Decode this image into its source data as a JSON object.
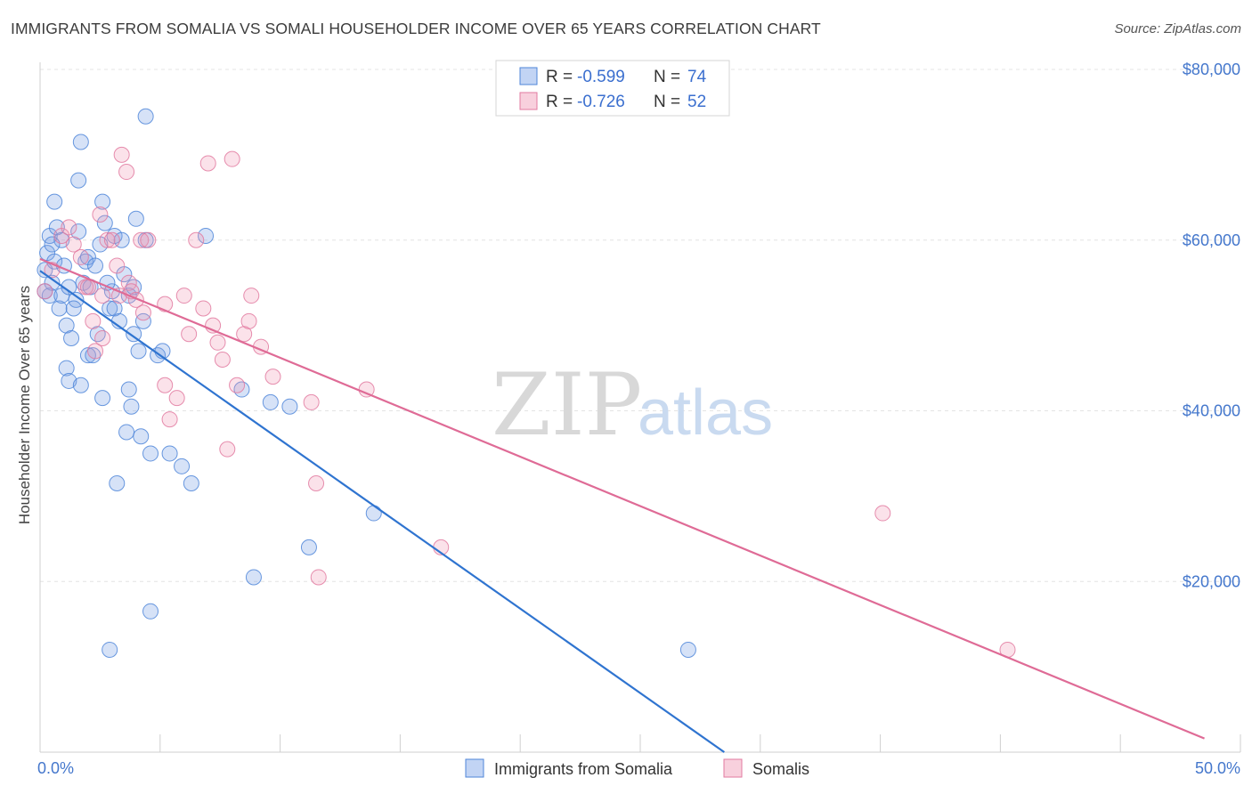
{
  "title": "IMMIGRANTS FROM SOMALIA VS SOMALI HOUSEHOLDER INCOME OVER 65 YEARS CORRELATION CHART",
  "source": "Source: ZipAtlas.com",
  "watermark": {
    "zip": "ZIP",
    "atlas": "atlas"
  },
  "colors": {
    "blue": "#4f86d9",
    "blue_fill": "rgba(120,160,230,0.30)",
    "blue_line": "#2f74d0",
    "pink": "#e27aa0",
    "pink_fill": "rgba(240,150,180,0.28)",
    "pink_line": "#df6b96"
  },
  "legend": {
    "r_label": "R =",
    "n_label": "N =",
    "entries": [
      {
        "r": "-0.599",
        "n": "74"
      },
      {
        "r": "-0.726",
        "n": "52"
      }
    ]
  },
  "chart_data": {
    "type": "scatter",
    "title": "IMMIGRANTS FROM SOMALIA VS SOMALI HOUSEHOLDER INCOME OVER 65 YEARS CORRELATION CHART",
    "xlabel": "",
    "ylabel": "Householder Income Over 65 years",
    "xlim": [
      0,
      50
    ],
    "ylim": [
      0,
      80000
    ],
    "x_tick_labels": {
      "left": "0.0%",
      "right": "50.0%"
    },
    "y_ticks": [
      {
        "value": 20000,
        "label": "$20,000"
      },
      {
        "value": 40000,
        "label": "$40,000"
      },
      {
        "value": 60000,
        "label": "$60,000"
      },
      {
        "value": 80000,
        "label": "$80,000"
      }
    ],
    "grid": true,
    "legend_position": "bottom",
    "series": [
      {
        "name": "Immigrants from Somalia",
        "color": "#4f86d9",
        "trend": {
          "x0": 0,
          "y0": 56400,
          "x1": 28.5,
          "y1": 0
        },
        "points": [
          [
            0.2,
            56500
          ],
          [
            0.3,
            58500
          ],
          [
            0.4,
            60500
          ],
          [
            0.4,
            53500
          ],
          [
            0.5,
            55000
          ],
          [
            0.6,
            57500
          ],
          [
            0.6,
            64500
          ],
          [
            0.7,
            61500
          ],
          [
            0.8,
            52000
          ],
          [
            0.9,
            60000
          ],
          [
            0.9,
            53500
          ],
          [
            1.0,
            57000
          ],
          [
            1.1,
            45000
          ],
          [
            1.1,
            50000
          ],
          [
            1.2,
            43500
          ],
          [
            1.2,
            54500
          ],
          [
            1.3,
            48500
          ],
          [
            1.5,
            53000
          ],
          [
            1.6,
            61000
          ],
          [
            1.6,
            67000
          ],
          [
            1.7,
            43000
          ],
          [
            1.7,
            71500
          ],
          [
            1.8,
            55000
          ],
          [
            1.9,
            57500
          ],
          [
            2.0,
            46500
          ],
          [
            2.1,
            54500
          ],
          [
            2.0,
            58000
          ],
          [
            2.2,
            46500
          ],
          [
            2.3,
            57000
          ],
          [
            2.4,
            49000
          ],
          [
            2.5,
            59500
          ],
          [
            2.6,
            64500
          ],
          [
            2.6,
            41500
          ],
          [
            2.7,
            62000
          ],
          [
            2.9,
            52000
          ],
          [
            2.9,
            12000
          ],
          [
            3.0,
            54000
          ],
          [
            3.1,
            60500
          ],
          [
            3.1,
            52000
          ],
          [
            3.2,
            31500
          ],
          [
            3.3,
            50500
          ],
          [
            3.4,
            60000
          ],
          [
            3.5,
            56000
          ],
          [
            3.6,
            37500
          ],
          [
            3.7,
            42500
          ],
          [
            3.7,
            53500
          ],
          [
            3.8,
            40500
          ],
          [
            3.9,
            49000
          ],
          [
            3.9,
            54500
          ],
          [
            4.0,
            62500
          ],
          [
            4.1,
            47000
          ],
          [
            4.2,
            37000
          ],
          [
            4.3,
            50500
          ],
          [
            4.4,
            60000
          ],
          [
            4.4,
            74500
          ],
          [
            4.6,
            16500
          ],
          [
            4.6,
            35000
          ],
          [
            4.9,
            46500
          ],
          [
            5.1,
            47000
          ],
          [
            5.4,
            35000
          ],
          [
            5.9,
            33500
          ],
          [
            6.3,
            31500
          ],
          [
            6.9,
            60500
          ],
          [
            8.4,
            42500
          ],
          [
            8.9,
            20500
          ],
          [
            9.6,
            41000
          ],
          [
            10.4,
            40500
          ],
          [
            11.2,
            24000
          ],
          [
            13.9,
            28000
          ],
          [
            27.0,
            12000
          ],
          [
            0.2,
            54000
          ],
          [
            0.5,
            59500
          ],
          [
            1.4,
            52000
          ],
          [
            2.8,
            55000
          ]
        ]
      },
      {
        "name": "Somalis",
        "color": "#e27aa0",
        "trend": {
          "x0": 0,
          "y0": 57800,
          "x1": 48.5,
          "y1": 1600
        },
        "points": [
          [
            0.2,
            54000
          ],
          [
            0.5,
            56500
          ],
          [
            0.9,
            60500
          ],
          [
            1.2,
            61500
          ],
          [
            1.4,
            59500
          ],
          [
            1.7,
            58000
          ],
          [
            1.9,
            54500
          ],
          [
            2.0,
            54500
          ],
          [
            2.2,
            50500
          ],
          [
            2.3,
            47000
          ],
          [
            2.5,
            63000
          ],
          [
            2.6,
            53500
          ],
          [
            2.6,
            48500
          ],
          [
            2.8,
            60000
          ],
          [
            3.0,
            60000
          ],
          [
            3.2,
            57000
          ],
          [
            3.3,
            53500
          ],
          [
            3.4,
            70000
          ],
          [
            3.6,
            68000
          ],
          [
            3.7,
            55000
          ],
          [
            3.8,
            54000
          ],
          [
            4.0,
            53000
          ],
          [
            4.2,
            60000
          ],
          [
            4.3,
            51500
          ],
          [
            4.5,
            60000
          ],
          [
            5.2,
            52500
          ],
          [
            5.2,
            43000
          ],
          [
            5.4,
            39000
          ],
          [
            5.7,
            41500
          ],
          [
            6.0,
            53500
          ],
          [
            6.2,
            49000
          ],
          [
            6.5,
            60000
          ],
          [
            6.8,
            52000
          ],
          [
            7.0,
            69000
          ],
          [
            7.2,
            50000
          ],
          [
            7.4,
            48000
          ],
          [
            7.6,
            46000
          ],
          [
            7.8,
            35500
          ],
          [
            8.0,
            69500
          ],
          [
            8.2,
            43000
          ],
          [
            8.5,
            49000
          ],
          [
            8.7,
            50500
          ],
          [
            8.8,
            53500
          ],
          [
            9.2,
            47500
          ],
          [
            9.7,
            44000
          ],
          [
            11.3,
            41000
          ],
          [
            11.5,
            31500
          ],
          [
            11.6,
            20500
          ],
          [
            13.6,
            42500
          ],
          [
            16.7,
            24000
          ],
          [
            35.1,
            28000
          ],
          [
            40.3,
            12000
          ]
        ]
      }
    ]
  },
  "bottom_legend": [
    {
      "label": "Immigrants from Somalia"
    },
    {
      "label": "Somalis"
    }
  ]
}
